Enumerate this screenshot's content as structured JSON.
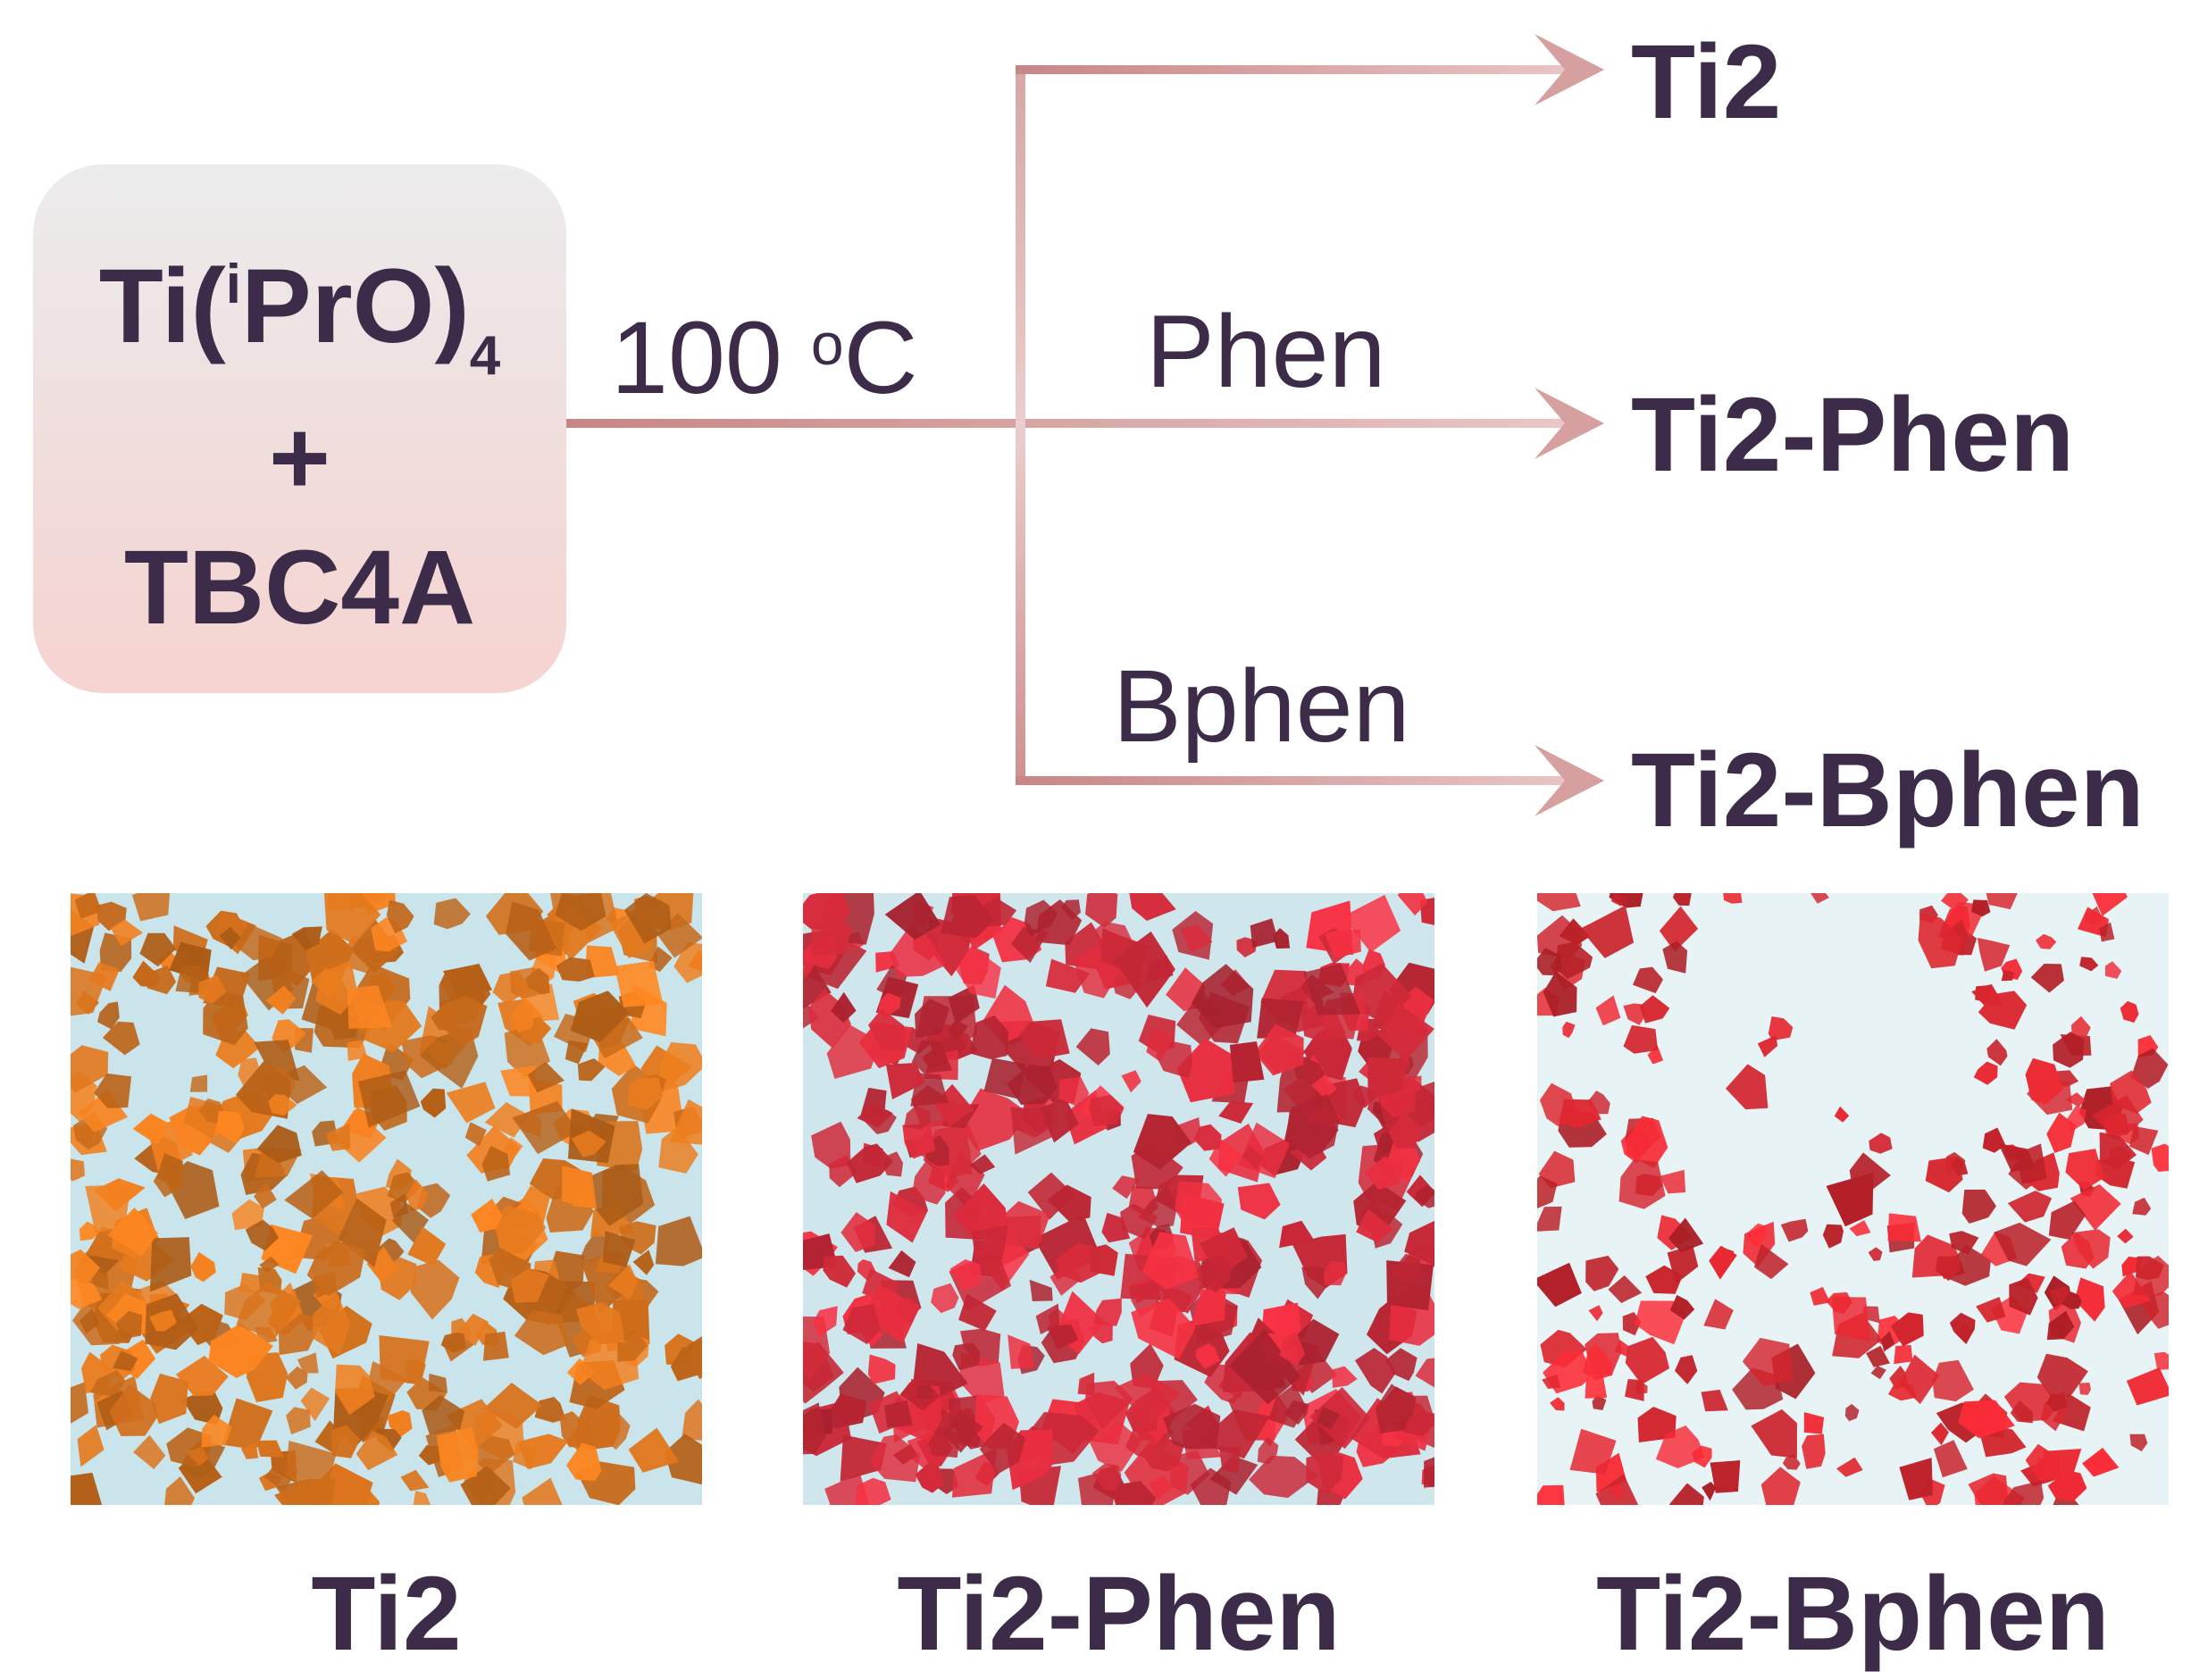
{
  "reactants": {
    "line1_main": "Ti(",
    "line1_sup": "i",
    "line1_rest": "PrO)",
    "line1_sub": "4",
    "plus": "+",
    "line3": "TBC4A"
  },
  "conditions": {
    "temp_value": "100 ",
    "temp_deg": "o",
    "temp_unit": "C",
    "phen_label": "Phen",
    "bphen_label": "Bphen"
  },
  "products": [
    "Ti2",
    "Ti2-Phen",
    "Ti2-Bphen"
  ],
  "photos": [
    {
      "caption": "Ti2",
      "crystal_color": "#d9731c",
      "background": "#c9e4ea"
    },
    {
      "caption": "Ti2-Phen",
      "crystal_color": "#d42a3a",
      "background": "#cfe6ec"
    },
    {
      "caption": "Ti2-Bphen",
      "crystal_color": "#d8262f",
      "background": "#e8f3f6"
    }
  ],
  "colors": {
    "text": "#3d2b4a",
    "arrow": "#d39a9a",
    "box_top": "#ececec",
    "box_bottom": "#f6d3d0"
  }
}
